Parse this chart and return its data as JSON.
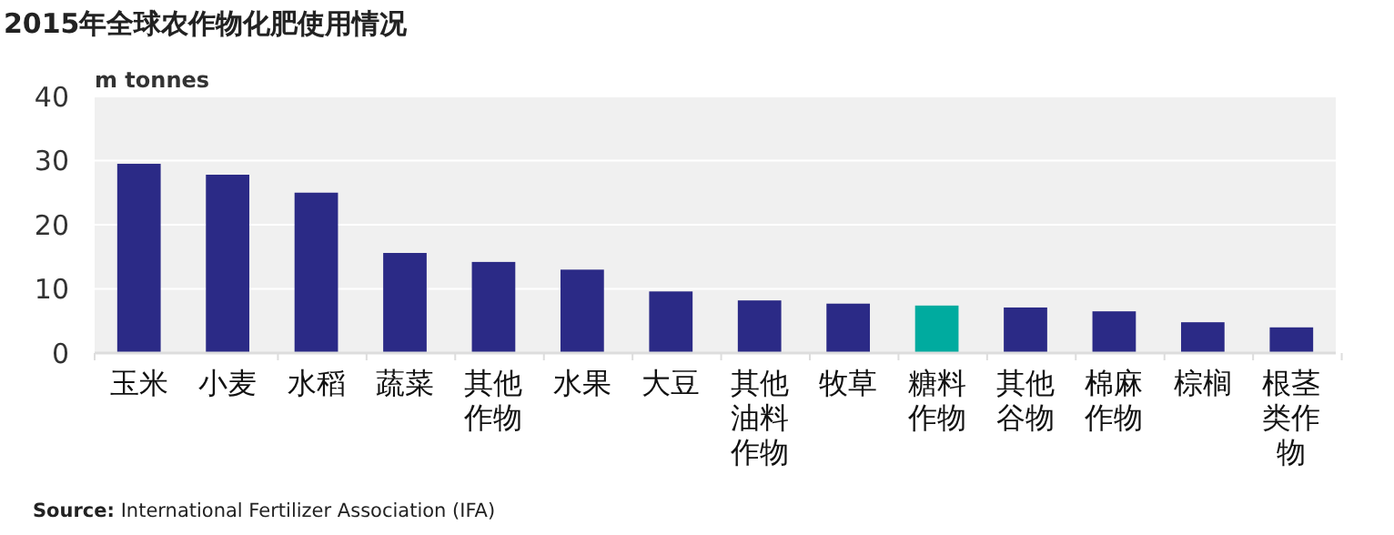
{
  "chart_data": {
    "type": "bar",
    "title": "2015年全球农作物化肥使用情况",
    "ylabel": "m tonnes",
    "categories": [
      "玉米",
      "小麦",
      "水稻",
      "蔬菜",
      "其他作物",
      "水果",
      "大豆",
      "其他油料作物",
      "牧草",
      "糖料作物",
      "其他谷物",
      "棉麻作物",
      "棕榈",
      "根茎类作物"
    ],
    "values": [
      29.5,
      27.8,
      25.0,
      15.6,
      14.2,
      13.0,
      9.6,
      8.2,
      7.7,
      7.4,
      7.1,
      6.5,
      4.8,
      4.0
    ],
    "colors": [
      "#2b2a86",
      "#2b2a86",
      "#2b2a86",
      "#2b2a86",
      "#2b2a86",
      "#2b2a86",
      "#2b2a86",
      "#2b2a86",
      "#2b2a86",
      "#00ab9f",
      "#2b2a86",
      "#2b2a86",
      "#2b2a86",
      "#2b2a86"
    ],
    "ylim": [
      0,
      40
    ],
    "yticks": [
      0,
      10,
      20,
      30,
      40
    ],
    "grid": "y",
    "annotations": [
      "Source: International Fertilizer Association (IFA)"
    ]
  }
}
